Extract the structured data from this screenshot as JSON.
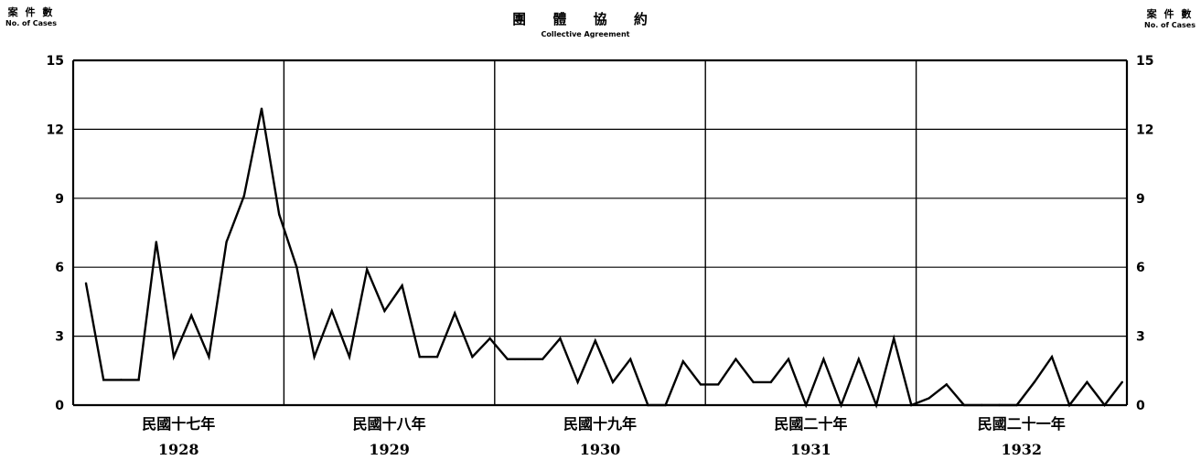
{
  "header": {
    "title_zh": "團 體 協 約",
    "title_en": "Collective Agreement",
    "left_unit_zh": "案 件 數",
    "left_unit_en": "No. of Cases",
    "right_unit_zh": "案 件 數",
    "right_unit_en": "No. of Cases"
  },
  "chart_data": {
    "type": "line",
    "title": "團 體 協 約 Collective Agreement",
    "ylabel": "案件數 No. of Cases",
    "ylim": [
      0,
      15
    ],
    "yticks": [
      "0",
      "3",
      "6",
      "9",
      "12",
      "15"
    ],
    "grid": true,
    "years": [
      {
        "label_zh": "民國十七年",
        "label_year": "1928"
      },
      {
        "label_zh": "民國十八年",
        "label_year": "1929"
      },
      {
        "label_zh": "民國十九年",
        "label_year": "1930"
      },
      {
        "label_zh": "民國二十年",
        "label_year": "1931"
      },
      {
        "label_zh": "民國二十一年",
        "label_year": "1932"
      }
    ],
    "months_per_year": 12,
    "series": [
      {
        "values": [
          5.3,
          1.1,
          1.1,
          1.1,
          7.1,
          2.1,
          3.9,
          2.1,
          7.1,
          9.1,
          12.9,
          8.3,
          6.0,
          2.1,
          4.1,
          2.1,
          5.9,
          4.1,
          5.2,
          2.1,
          2.1,
          4.0,
          2.1,
          2.9,
          2.0,
          2.0,
          2.0,
          2.9,
          1.0,
          2.8,
          1.0,
          2.0,
          0,
          0,
          1.9,
          0.9,
          0.9,
          2.0,
          1.0,
          1.0,
          2.0,
          0,
          2.0,
          0,
          2.0,
          0,
          2.9,
          0,
          0.3,
          0.9,
          0,
          0,
          0,
          0,
          1.0,
          2.1,
          0,
          1.0,
          0,
          1.0
        ]
      }
    ]
  }
}
